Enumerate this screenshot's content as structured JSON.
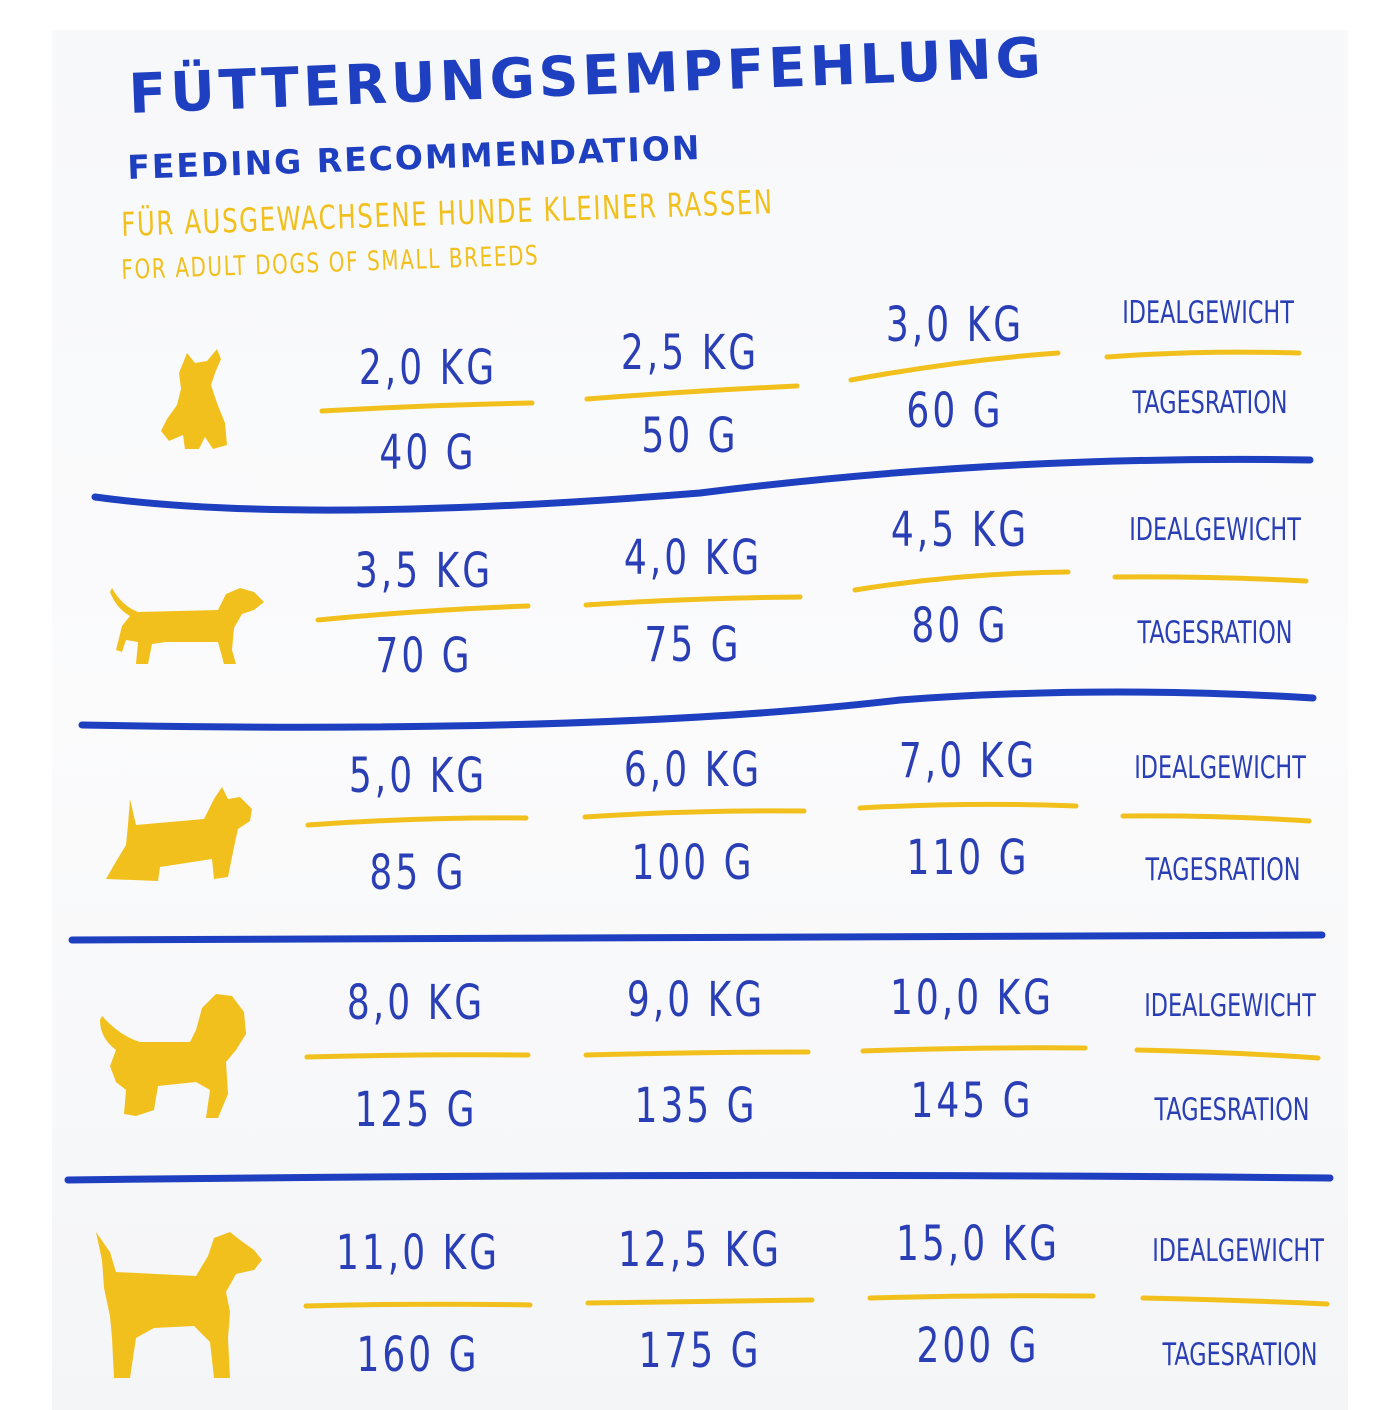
{
  "heading": {
    "title": "FÜTTERUNGSEMPFEHLUNG",
    "subtitle": "FEEDING RECOMMENDATION",
    "target_de": "FÜR AUSGEWACHSENE HUNDE KLEINER RASSEN",
    "target_en": "FOR ADULT DOGS OF SMALL BREEDS"
  },
  "labels": {
    "weight": "IDEALGEWICHT",
    "ration": "TAGESRATION"
  },
  "colors": {
    "blue": "#2a3fb5",
    "yellow": "#f2c01d"
  },
  "rows": [
    {
      "icon": "yorkshire-terrier-icon",
      "weights": [
        "2,0 KG",
        "2,5 KG",
        "3,0 KG"
      ],
      "rations": [
        "40 G",
        "50 G",
        "60 G"
      ]
    },
    {
      "icon": "dachshund-icon",
      "weights": [
        "3,5 KG",
        "4,0 KG",
        "4,5 KG"
      ],
      "rations": [
        "70 G",
        "75 G",
        "80 G"
      ]
    },
    {
      "icon": "scottish-terrier-icon",
      "weights": [
        "5,0 KG",
        "6,0 KG",
        "7,0 KG"
      ],
      "rations": [
        "85 G",
        "100 G",
        "110 G"
      ]
    },
    {
      "icon": "poodle-icon",
      "weights": [
        "8,0 KG",
        "9,0 KG",
        "10,0 KG"
      ],
      "rations": [
        "125 G",
        "135 G",
        "145 G"
      ]
    },
    {
      "icon": "fox-terrier-icon",
      "weights": [
        "11,0 KG",
        "12,5 KG",
        "15,0 KG"
      ],
      "rations": [
        "160 G",
        "175 G",
        "200 G"
      ]
    }
  ]
}
